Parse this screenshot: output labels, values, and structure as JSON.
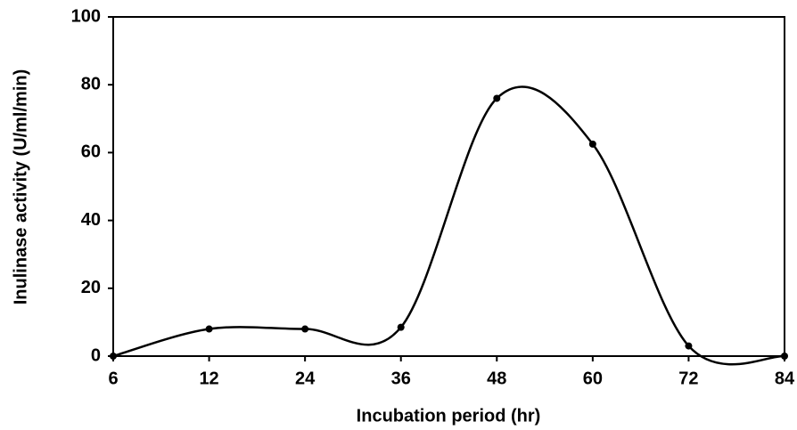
{
  "chart_data": {
    "type": "line",
    "xlabel": "Incubation period (hr)",
    "ylabel": "Inulinase activity (U/ml/min)",
    "categories": [
      "6",
      "12",
      "24",
      "36",
      "48",
      "60",
      "72",
      "84"
    ],
    "values": [
      0,
      8,
      8,
      8.5,
      76,
      62.5,
      3,
      0
    ],
    "color": "#000000",
    "ylim": [
      0,
      100
    ],
    "yticks": [
      0,
      20,
      40,
      60,
      80,
      100
    ],
    "smooth": true,
    "markers": true
  }
}
